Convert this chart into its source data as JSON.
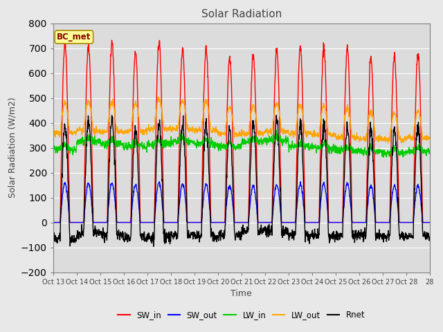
{
  "title": "Solar Radiation",
  "xlabel": "Time",
  "ylabel": "Solar Radiation (W/m2)",
  "ylim": [
    -200,
    800
  ],
  "yticks": [
    -200,
    -100,
    0,
    100,
    200,
    300,
    400,
    500,
    600,
    700,
    800
  ],
  "xtick_labels": [
    "Oct 13",
    "Oct 14",
    "Oct 15",
    "Oct 16",
    "Oct 17",
    "Oct 18",
    "Oct 19",
    "Oct 20",
    "Oct 21",
    "Oct 22",
    "Oct 23",
    "Oct 24",
    "Oct 25",
    "Oct 26",
    "Oct 27",
    "Oct 28"
  ],
  "annotation": "BC_met",
  "annotation_color": "#8B0000",
  "annotation_bg": "#FFFF99",
  "line_colors": {
    "SW_in": "#FF0000",
    "SW_out": "#0000FF",
    "LW_in": "#00CC00",
    "LW_out": "#FFA500",
    "Rnet": "#000000"
  },
  "line_widths": {
    "SW_in": 1.0,
    "SW_out": 1.0,
    "LW_in": 1.0,
    "LW_out": 1.0,
    "Rnet": 1.0
  },
  "legend_entries": [
    "SW_in",
    "SW_out",
    "LW_in",
    "LW_out",
    "Rnet"
  ],
  "bg_color": "#E8E8E8",
  "plot_bg_color": "#DCDCDC",
  "n_days": 16,
  "pts_per_day": 96
}
